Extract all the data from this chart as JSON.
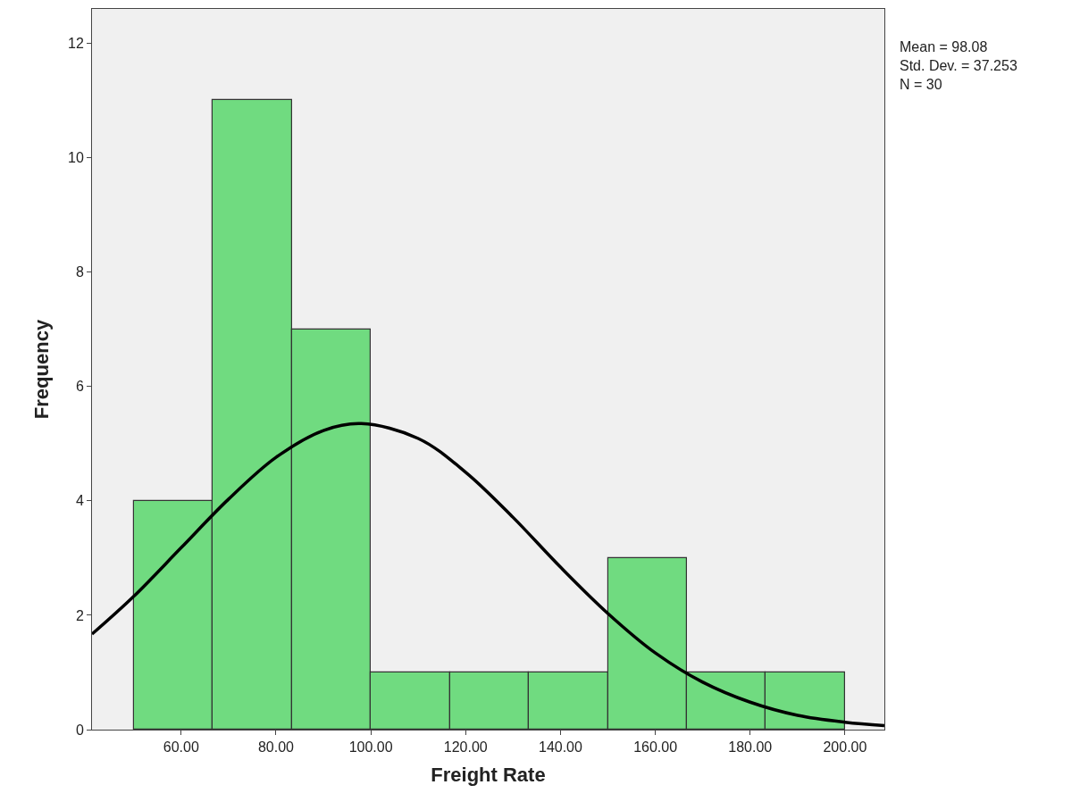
{
  "chart_data": {
    "type": "histogram",
    "xlabel": "Freight Rate",
    "ylabel": "Frequency",
    "annotations": [
      "Mean = 98.08",
      "Std. Dev. = 37.253",
      "N = 30"
    ],
    "color": "#70db80",
    "bins": [
      50,
      66.67,
      83.33,
      100,
      116.67,
      133.33,
      150,
      166.67,
      183.33,
      200
    ],
    "values": [
      4,
      11,
      7,
      1,
      1,
      1,
      3,
      1,
      1
    ],
    "series": [
      {
        "type": "line",
        "color": "#000000",
        "x": [
          41.2,
          50,
          60,
          70,
          80,
          90,
          98,
          110,
          120,
          130,
          140,
          150,
          160,
          170,
          180,
          190,
          200,
          208.3
        ],
        "values": [
          1.67,
          2.33,
          3.18,
          4.03,
          4.76,
          5.23,
          5.35,
          5.09,
          4.5,
          3.71,
          2.84,
          2.03,
          1.34,
          0.83,
          0.48,
          0.25,
          0.13,
          0.07
        ]
      }
    ],
    "xlim": [
      41.2,
      208.3
    ],
    "ylim": [
      0,
      12.6
    ],
    "xticks": [
      {
        "value": 60,
        "label": "60.00"
      },
      {
        "value": 80,
        "label": "80.00"
      },
      {
        "value": 100,
        "label": "100.00"
      },
      {
        "value": 120,
        "label": "120.00"
      },
      {
        "value": 140,
        "label": "140.00"
      },
      {
        "value": 160,
        "label": "160.00"
      },
      {
        "value": 180,
        "label": "180.00"
      },
      {
        "value": 200,
        "label": "200.00"
      }
    ],
    "yticks": [
      0,
      2,
      4,
      6,
      8,
      10,
      12
    ],
    "grid": false
  }
}
